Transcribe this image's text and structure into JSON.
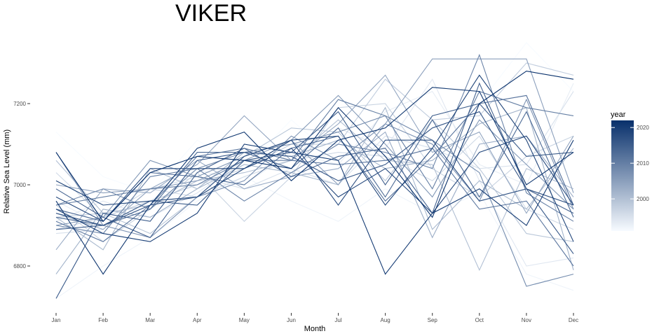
{
  "chart_data": {
    "type": "line",
    "title": "VIKER",
    "xlabel": "Month",
    "ylabel": "Relative Sea Level (mm)",
    "categories": [
      "Jan",
      "Feb",
      "Mar",
      "Apr",
      "May",
      "Jun",
      "Jul",
      "Aug",
      "Sep",
      "Oct",
      "Nov",
      "Dec"
    ],
    "yticks": [
      6800,
      7000,
      7200
    ],
    "ylim": [
      6700,
      7360
    ],
    "grid": false,
    "legend": {
      "title": "year",
      "type": "colorbar",
      "placement": "right",
      "range": [
        1991,
        2022
      ],
      "ticks": [
        2000,
        2010,
        2020
      ],
      "color_low": "#f7fbff",
      "color_high": "#08306b"
    },
    "series": [
      {
        "year": 1991,
        "values": [
          7130,
          7020,
          6980,
          7110,
          7040,
          7160,
          7060,
          7150,
          7080,
          7200,
          7350,
          7230
        ]
      },
      {
        "year": 1992,
        "values": [
          6720,
          6800,
          6870,
          6960,
          7020,
          6960,
          6910,
          6990,
          6930,
          6980,
          6780,
          6740
        ]
      },
      {
        "year": 1993,
        "values": [
          6960,
          6900,
          6960,
          7040,
          7000,
          7080,
          7050,
          7180,
          7230,
          7050,
          7000,
          7250
        ]
      },
      {
        "year": 1994,
        "values": [
          6910,
          6960,
          6920,
          6980,
          7060,
          7040,
          7140,
          7090,
          7260,
          7010,
          6800,
          6820
        ]
      },
      {
        "year": 1995,
        "values": [
          6880,
          6890,
          6990,
          7020,
          6990,
          7040,
          7000,
          7120,
          7090,
          7040,
          7050,
          7230
        ]
      },
      {
        "year": 1996,
        "values": [
          7030,
          6920,
          6990,
          6970,
          7020,
          7060,
          7080,
          7070,
          7010,
          7120,
          6940,
          6890
        ]
      },
      {
        "year": 1997,
        "values": [
          6950,
          6860,
          6940,
          7030,
          6910,
          7020,
          7190,
          7200,
          7040,
          6970,
          7070,
          7120
        ]
      },
      {
        "year": 1998,
        "values": [
          6890,
          6920,
          6960,
          7000,
          7040,
          7100,
          7100,
          7260,
          7160,
          7170,
          7300,
          7270
        ]
      },
      {
        "year": 1999,
        "values": [
          6920,
          6930,
          6880,
          6970,
          7070,
          7140,
          7130,
          7010,
          7160,
          7040,
          6880,
          6860
        ]
      },
      {
        "year": 2000,
        "values": [
          7060,
          6930,
          6950,
          7010,
          7030,
          7060,
          7160,
          7060,
          7050,
          6790,
          7040,
          6990
        ]
      },
      {
        "year": 2001,
        "values": [
          6920,
          6840,
          7040,
          6990,
          7050,
          7030,
          7000,
          7190,
          6890,
          7010,
          6940,
          7090
        ]
      },
      {
        "year": 2002,
        "values": [
          6780,
          6940,
          6920,
          6990,
          7080,
          7070,
          7110,
          7040,
          7060,
          7150,
          7190,
          6790
        ]
      },
      {
        "year": 2003,
        "values": [
          6840,
          6990,
          6980,
          7060,
          6990,
          7020,
          7040,
          7130,
          6870,
          7100,
          7120,
          6970
        ]
      },
      {
        "year": 2004,
        "values": [
          6930,
          6890,
          6990,
          7050,
          7170,
          7060,
          7150,
          7270,
          7080,
          7130,
          6930,
          7120
        ]
      },
      {
        "year": 2005,
        "values": [
          7000,
          6980,
          6990,
          7010,
          7060,
          7110,
          7000,
          7150,
          7310,
          7310,
          7310,
          6980
        ]
      },
      {
        "year": 2006,
        "values": [
          6900,
          6920,
          7060,
          7020,
          7070,
          7110,
          7220,
          7100,
          6970,
          7160,
          7050,
          6940
        ]
      },
      {
        "year": 2007,
        "values": [
          7080,
          6900,
          6870,
          6970,
          7010,
          7120,
          7060,
          7150,
          7100,
          6960,
          7210,
          6940
        ]
      },
      {
        "year": 2008,
        "values": [
          6950,
          6990,
          6940,
          7040,
          7080,
          7100,
          7130,
          7170,
          7110,
          7030,
          6750,
          6780
        ]
      },
      {
        "year": 2009,
        "values": [
          6900,
          6880,
          7020,
          7040,
          6960,
          7030,
          7100,
          7080,
          7040,
          7320,
          6980,
          6910
        ]
      },
      {
        "year": 2010,
        "values": [
          6950,
          6970,
          6990,
          7000,
          7060,
          7060,
          7210,
          7170,
          6990,
          7230,
          7190,
          7170
        ]
      },
      {
        "year": 2011,
        "values": [
          6910,
          6860,
          6950,
          7070,
          7090,
          7060,
          7050,
          7060,
          7090,
          6940,
          6960,
          6800
        ]
      },
      {
        "year": 2012,
        "values": [
          6940,
          6910,
          7030,
          7020,
          7000,
          7090,
          7120,
          6960,
          7070,
          7200,
          7220,
          6950
        ]
      },
      {
        "year": 2013,
        "values": [
          6920,
          6900,
          6940,
          7080,
          7080,
          7040,
          7140,
          6970,
          7160,
          6970,
          7180,
          6920
        ]
      },
      {
        "year": 2014,
        "values": [
          6990,
          6920,
          6870,
          7030,
          7090,
          7020,
          7070,
          7090,
          6930,
          7250,
          6990,
          6930
        ]
      },
      {
        "year": 2015,
        "values": [
          6890,
          6900,
          6960,
          6950,
          7060,
          7080,
          7180,
          7000,
          7170,
          7200,
          7070,
          7080
        ]
      },
      {
        "year": 2016,
        "values": [
          6720,
          6930,
          6910,
          7060,
          7080,
          7070,
          7010,
          7050,
          7140,
          7180,
          6990,
          6830
        ]
      },
      {
        "year": 2017,
        "values": [
          6930,
          6900,
          6950,
          6970,
          7070,
          7110,
          6950,
          7110,
          7110,
          6960,
          6990,
          6950
        ]
      },
      {
        "year": 2018,
        "values": [
          6970,
          6910,
          7040,
          7040,
          7040,
          7090,
          6970,
          7040,
          6930,
          7080,
          7120,
          6950
        ]
      },
      {
        "year": 2019,
        "values": [
          7010,
          6950,
          6960,
          6970,
          7040,
          7110,
          7120,
          6950,
          7090,
          7270,
          7110,
          6860
        ]
      },
      {
        "year": 2020,
        "values": [
          6940,
          6880,
          6860,
          6930,
          7100,
          7080,
          7060,
          6780,
          6930,
          6990,
          6900,
          7110
        ]
      },
      {
        "year": 2021,
        "values": [
          6960,
          6780,
          6950,
          7090,
          7130,
          7010,
          7110,
          7140,
          7240,
          7230,
          7000,
          7080
        ]
      },
      {
        "year": 2022,
        "values": [
          7080,
          6910,
          7030,
          7070,
          7060,
          7040,
          7190,
          7070,
          6920,
          7200,
          7280,
          7260
        ]
      }
    ]
  }
}
